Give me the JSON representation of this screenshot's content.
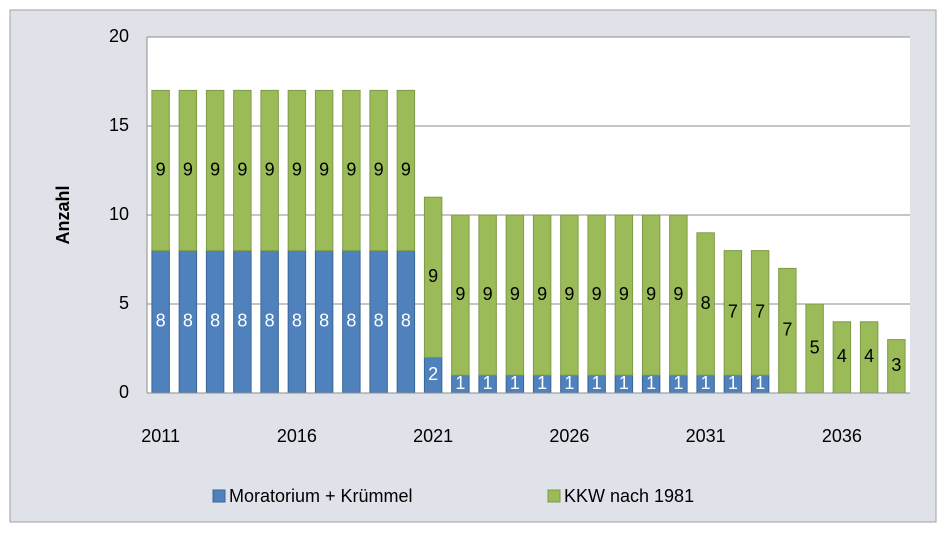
{
  "chart_data": {
    "type": "bar",
    "stacked": true,
    "y_label": "Anzahl",
    "categories": [
      "2011",
      null,
      null,
      null,
      null,
      "2016",
      null,
      null,
      null,
      null,
      "2021",
      null,
      null,
      null,
      null,
      "2026",
      null,
      null,
      null,
      null,
      "2031",
      null,
      null,
      null,
      null,
      "2036",
      null,
      null
    ],
    "series": [
      {
        "name": "Moratorium + Krümmel",
        "color": "#4f81bd",
        "values": [
          8,
          8,
          8,
          8,
          8,
          8,
          8,
          8,
          8,
          8,
          2,
          1,
          1,
          1,
          1,
          1,
          1,
          1,
          1,
          1,
          1,
          1,
          1,
          null,
          null,
          null,
          null,
          null
        ]
      },
      {
        "name": "KKW nach 1981",
        "color": "#9bbb59",
        "values": [
          9,
          9,
          9,
          9,
          9,
          9,
          9,
          9,
          9,
          9,
          9,
          9,
          9,
          9,
          9,
          9,
          9,
          9,
          9,
          9,
          8,
          7,
          7,
          7,
          5,
          4,
          4,
          3
        ]
      }
    ],
    "ylim": [
      0,
      20
    ],
    "yticks": [
      0,
      5,
      10,
      15,
      20
    ],
    "grid": true,
    "legend": "bottom"
  }
}
